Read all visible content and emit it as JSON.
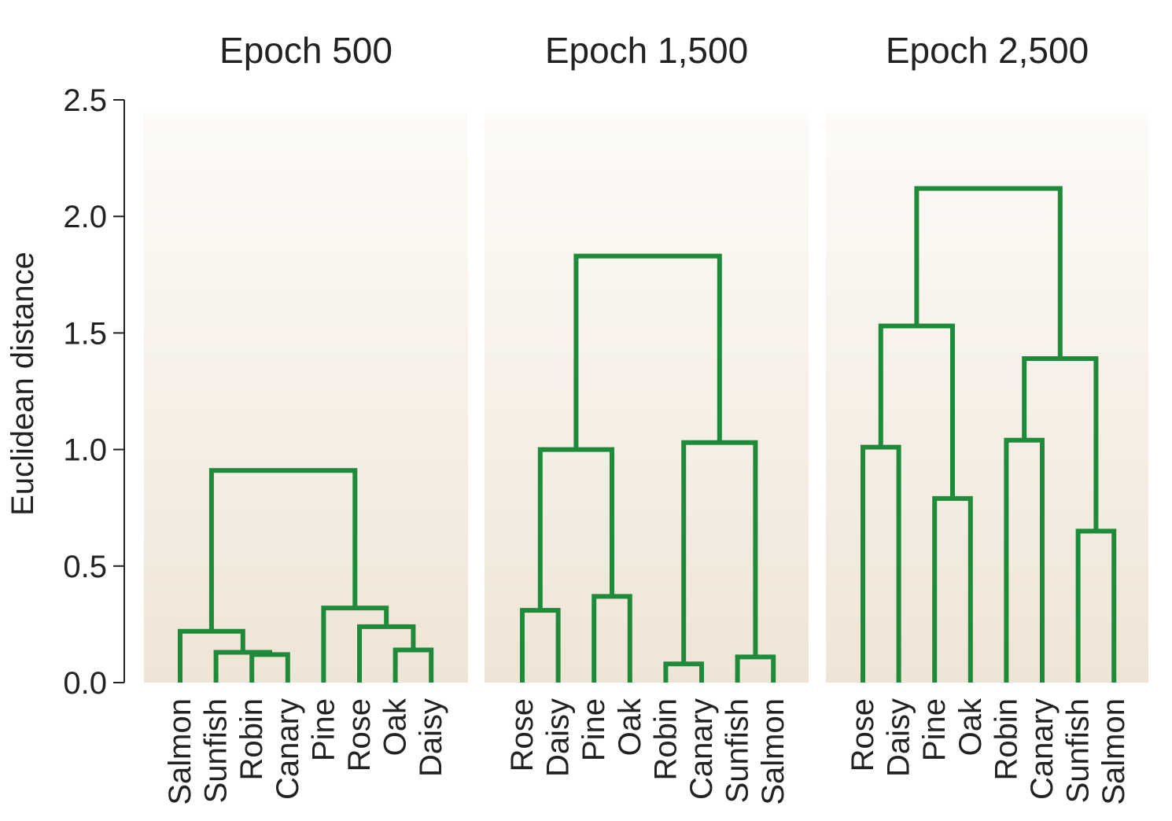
{
  "chart_data": {
    "type": "dendrogram",
    "ylabel": "Euclidean distance",
    "ylim": [
      0,
      2.5
    ],
    "yticks": [
      "0.0",
      "0.5",
      "1.0",
      "1.5",
      "2.0",
      "2.5"
    ],
    "yticks_values": [
      0,
      0.5,
      1.0,
      1.5,
      2.0,
      2.5
    ],
    "colors": {
      "branch": "#1f8a3a",
      "panel_bottom": "#efe5d6",
      "panel_top": "#fdfbf8",
      "axis": "#222222"
    },
    "panels": [
      {
        "title": "Epoch 500",
        "leaves": [
          "Salmon",
          "Sunfish",
          "Robin",
          "Canary",
          "Pine",
          "Rose",
          "Oak",
          "Daisy"
        ],
        "merges": [
          {
            "left": [
              "Robin"
            ],
            "right": [
              "Canary"
            ],
            "height": 0.12
          },
          {
            "left": [
              "Oak"
            ],
            "right": [
              "Daisy"
            ],
            "height": 0.14
          },
          {
            "left": [
              "Sunfish"
            ],
            "right": [
              "Robin",
              "Canary"
            ],
            "height": 0.13
          },
          {
            "left": [
              "Salmon"
            ],
            "right": [
              "Sunfish",
              "Robin",
              "Canary"
            ],
            "height": 0.22
          },
          {
            "left": [
              "Rose"
            ],
            "right": [
              "Oak",
              "Daisy"
            ],
            "height": 0.24
          },
          {
            "left": [
              "Pine"
            ],
            "right": [
              "Rose",
              "Oak",
              "Daisy"
            ],
            "height": 0.32
          },
          {
            "left": [
              "Salmon",
              "Sunfish",
              "Robin",
              "Canary"
            ],
            "right": [
              "Pine",
              "Rose",
              "Oak",
              "Daisy"
            ],
            "height": 0.91
          }
        ]
      },
      {
        "title": "Epoch 1,500",
        "leaves": [
          "Rose",
          "Daisy",
          "Pine",
          "Oak",
          "Robin",
          "Canary",
          "Sunfish",
          "Salmon"
        ],
        "merges": [
          {
            "left": [
              "Rose"
            ],
            "right": [
              "Daisy"
            ],
            "height": 0.31
          },
          {
            "left": [
              "Pine"
            ],
            "right": [
              "Oak"
            ],
            "height": 0.37
          },
          {
            "left": [
              "Robin"
            ],
            "right": [
              "Canary"
            ],
            "height": 0.08
          },
          {
            "left": [
              "Sunfish"
            ],
            "right": [
              "Salmon"
            ],
            "height": 0.11
          },
          {
            "left": [
              "Rose",
              "Daisy"
            ],
            "right": [
              "Pine",
              "Oak"
            ],
            "height": 1.0
          },
          {
            "left": [
              "Robin",
              "Canary"
            ],
            "right": [
              "Sunfish",
              "Salmon"
            ],
            "height": 1.03
          },
          {
            "left": [
              "Rose",
              "Daisy",
              "Pine",
              "Oak"
            ],
            "right": [
              "Robin",
              "Canary",
              "Sunfish",
              "Salmon"
            ],
            "height": 1.83
          }
        ]
      },
      {
        "title": "Epoch 2,500",
        "leaves": [
          "Rose",
          "Daisy",
          "Pine",
          "Oak",
          "Robin",
          "Canary",
          "Sunfish",
          "Salmon"
        ],
        "merges": [
          {
            "left": [
              "Rose"
            ],
            "right": [
              "Daisy"
            ],
            "height": 1.01
          },
          {
            "left": [
              "Pine"
            ],
            "right": [
              "Oak"
            ],
            "height": 0.79
          },
          {
            "left": [
              "Robin"
            ],
            "right": [
              "Canary"
            ],
            "height": 1.04
          },
          {
            "left": [
              "Sunfish"
            ],
            "right": [
              "Salmon"
            ],
            "height": 0.65
          },
          {
            "left": [
              "Rose",
              "Daisy"
            ],
            "right": [
              "Pine",
              "Oak"
            ],
            "height": 1.53
          },
          {
            "left": [
              "Robin",
              "Canary"
            ],
            "right": [
              "Sunfish",
              "Salmon"
            ],
            "height": 1.39
          },
          {
            "left": [
              "Rose",
              "Daisy",
              "Pine",
              "Oak"
            ],
            "right": [
              "Robin",
              "Canary",
              "Sunfish",
              "Salmon"
            ],
            "height": 2.12
          }
        ]
      }
    ]
  }
}
